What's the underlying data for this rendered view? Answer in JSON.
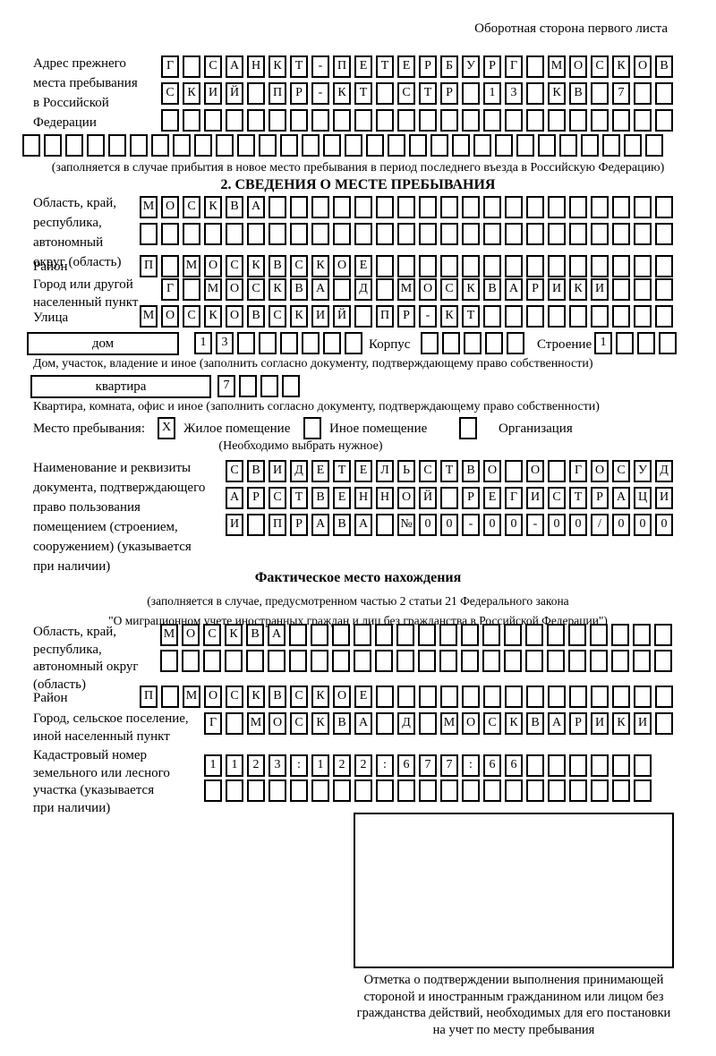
{
  "header": {
    "note": "Оборотная сторона первого листа"
  },
  "prev_address": {
    "label_lines": [
      "Адрес прежнего",
      "места пребывания",
      "в Российской",
      "Федерации"
    ],
    "row1": [
      "Г",
      "",
      "С",
      "А",
      "Н",
      "К",
      "Т",
      "-",
      "П",
      "Е",
      "Т",
      "Е",
      "Р",
      "Б",
      "У",
      "Р",
      "Г",
      "",
      "М",
      "О",
      "С",
      "К",
      "О",
      "В"
    ],
    "row2": [
      "С",
      "К",
      "И",
      "Й",
      "",
      "П",
      "Р",
      "-",
      "К",
      "Т",
      "",
      "С",
      "Т",
      "Р",
      "",
      "1",
      "3",
      "",
      "К",
      "В",
      "",
      "7",
      "",
      ""
    ],
    "row3": [
      "",
      "",
      "",
      "",
      "",
      "",
      "",
      "",
      "",
      "",
      "",
      "",
      "",
      "",
      "",
      "",
      "",
      "",
      "",
      "",
      "",
      "",
      "",
      ""
    ],
    "row4": [
      "",
      "",
      "",
      "",
      "",
      "",
      "",
      "",
      "",
      "",
      "",
      "",
      "",
      "",
      "",
      "",
      "",
      "",
      "",
      "",
      "",
      "",
      "",
      "",
      "",
      "",
      "",
      "",
      "",
      ""
    ],
    "note": "(заполняется в случае прибытия в новое место пребывания в период последнего въезда в Российскую Федерацию)"
  },
  "section2": {
    "title": "2. СВЕДЕНИЯ О МЕСТЕ ПРЕБЫВАНИЯ",
    "region": {
      "label_lines": [
        "Область, край,",
        "республика,",
        "автономный",
        "округ (область)"
      ],
      "row1": [
        "М",
        "О",
        "С",
        "К",
        "В",
        "А",
        "",
        "",
        "",
        "",
        "",
        "",
        "",
        "",
        "",
        "",
        "",
        "",
        "",
        "",
        "",
        "",
        "",
        "",
        ""
      ],
      "row2": [
        "",
        "",
        "",
        "",
        "",
        "",
        "",
        "",
        "",
        "",
        "",
        "",
        "",
        "",
        "",
        "",
        "",
        "",
        "",
        "",
        "",
        "",
        "",
        "",
        ""
      ]
    },
    "district": {
      "label": "Район",
      "row": [
        "П",
        "",
        "М",
        "О",
        "С",
        "К",
        "В",
        "С",
        "К",
        "О",
        "Е",
        "",
        "",
        "",
        "",
        "",
        "",
        "",
        "",
        "",
        "",
        "",
        "",
        "",
        ""
      ]
    },
    "city": {
      "label_lines": [
        "Город или другой",
        "населенный пункт"
      ],
      "row": [
        "Г",
        "",
        "М",
        "О",
        "С",
        "К",
        "В",
        "А",
        "",
        "Д",
        "",
        "М",
        "О",
        "С",
        "К",
        "В",
        "А",
        "Р",
        "И",
        "К",
        "И",
        "",
        "",
        ""
      ]
    },
    "street": {
      "label": "Улица",
      "row": [
        "М",
        "О",
        "С",
        "К",
        "О",
        "В",
        "С",
        "К",
        "И",
        "Й",
        "",
        "П",
        "Р",
        "-",
        "К",
        "Т",
        "",
        "",
        "",
        "",
        "",
        "",
        "",
        "",
        ""
      ]
    },
    "house": {
      "box_label": "дом",
      "cells": [
        "1",
        "3",
        "",
        "",
        "",
        "",
        "",
        ""
      ],
      "korpus_label": "Корпус",
      "korpus_cells": [
        "",
        "",
        "",
        "",
        ""
      ],
      "stroenie_label": "Строение",
      "stroenie_cells": [
        "1",
        "",
        "",
        ""
      ],
      "caption": "Дом, участок, владение и иное (заполнить согласно документу, подтверждающему право собственности)"
    },
    "apartment": {
      "box_label": "квартира",
      "cells": [
        "7",
        "",
        "",
        ""
      ],
      "caption": "Квартира, комната, офис и иное (заполнить согласно документу, подтверждающему право собственности)"
    },
    "stay": {
      "label": "Место пребывания:",
      "options": [
        {
          "mark": "X",
          "label": "Жилое помещение"
        },
        {
          "mark": "",
          "label": "Иное помещение"
        },
        {
          "mark": "",
          "label": "Организация"
        }
      ],
      "note": "(Необходимо выбрать нужное)"
    },
    "document": {
      "label_lines": [
        "Наименование и реквизиты",
        "документа, подтверждающего",
        "право пользования",
        "помещением (строением,",
        "сооружением) (указывается",
        "при наличии)"
      ],
      "row1": [
        "С",
        "В",
        "И",
        "Д",
        "Е",
        "Т",
        "Е",
        "Л",
        "Ь",
        "С",
        "Т",
        "В",
        "О",
        "",
        "О",
        "",
        "Г",
        "О",
        "С",
        "У",
        "Д"
      ],
      "row2": [
        "А",
        "Р",
        "С",
        "Т",
        "В",
        "Е",
        "Н",
        "Н",
        "О",
        "Й",
        "",
        "Р",
        "Е",
        "Г",
        "И",
        "С",
        "Т",
        "Р",
        "А",
        "Ц",
        "И"
      ],
      "row3": [
        "И",
        "",
        "П",
        "Р",
        "А",
        "В",
        "А",
        "",
        "№",
        "0",
        "0",
        "-",
        "0",
        "0",
        "-",
        "0",
        "0",
        "/",
        "0",
        "0",
        "0"
      ]
    }
  },
  "actual_location": {
    "title": "Фактическое место нахождения",
    "note_lines": [
      "(заполняется в случае, предусмотренном частью 2 статьи 21 Федерального закона",
      "\"О миграционном учете иностранных граждан и лиц без гражданства в Российской Федерации\")"
    ],
    "region": {
      "label_lines": [
        "Область, край,",
        "республика,",
        "автономный округ",
        "(область)"
      ],
      "row1": [
        "М",
        "О",
        "С",
        "К",
        "В",
        "А",
        "",
        "",
        "",
        "",
        "",
        "",
        "",
        "",
        "",
        "",
        "",
        "",
        "",
        "",
        "",
        "",
        "",
        ""
      ],
      "row2": [
        "",
        "",
        "",
        "",
        "",
        "",
        "",
        "",
        "",
        "",
        "",
        "",
        "",
        "",
        "",
        "",
        "",
        "",
        "",
        "",
        "",
        "",
        "",
        ""
      ]
    },
    "district": {
      "label": "Район",
      "row": [
        "П",
        "",
        "М",
        "О",
        "С",
        "К",
        "В",
        "С",
        "К",
        "О",
        "Е",
        "",
        "",
        "",
        "",
        "",
        "",
        "",
        "",
        "",
        "",
        "",
        "",
        "",
        ""
      ]
    },
    "city": {
      "label_lines": [
        "Город, сельское поселение,",
        "иной населенный пункт"
      ],
      "row": [
        "Г",
        "",
        "М",
        "О",
        "С",
        "К",
        "В",
        "А",
        "",
        "Д",
        "",
        "М",
        "О",
        "С",
        "К",
        "В",
        "А",
        "Р",
        "И",
        "К",
        "И",
        ""
      ]
    },
    "cadastre": {
      "label_lines": [
        "Кадастровый номер",
        "земельного или лесного",
        "участка (указывается",
        "при наличии)"
      ],
      "row1": [
        "1",
        "1",
        "2",
        "3",
        ":",
        "1",
        "2",
        "2",
        ":",
        "6",
        "7",
        "7",
        ":",
        "6",
        "6",
        "",
        "",
        "",
        "",
        "",
        ""
      ],
      "row2": [
        "",
        "",
        "",
        "",
        "",
        "",
        "",
        "",
        "",
        "",
        "",
        "",
        "",
        "",
        "",
        "",
        "",
        "",
        "",
        "",
        ""
      ]
    },
    "mark_caption_lines": [
      "Отметка о подтверждении выполнения принимающей",
      "стороной и иностранным гражданином или лицом без",
      "гражданства действий, необходимых для его постановки",
      "на учет по месту пребывания"
    ]
  }
}
